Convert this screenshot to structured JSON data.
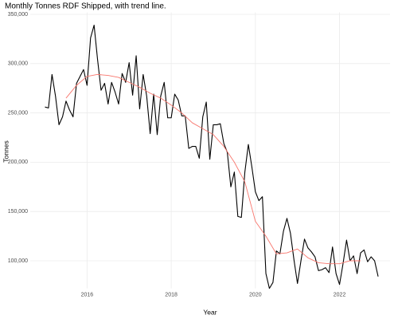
{
  "chart_data": {
    "type": "line",
    "title": "Monthly Tonnes RDF Shipped, with trend line.",
    "x_label": "Year",
    "y_label": "Tonnes",
    "xlim": [
      2014.65,
      2023.2
    ],
    "ylim": [
      72000,
      352000
    ],
    "xticks": [
      2016,
      2018,
      2020,
      2022
    ],
    "yticks": [
      {
        "value": 100000,
        "label": "100,000"
      },
      {
        "value": 150000,
        "label": "150,000"
      },
      {
        "value": 200000,
        "label": "200,000"
      },
      {
        "value": 250000,
        "label": "250,000"
      },
      {
        "value": 300000,
        "label": "300,000"
      },
      {
        "value": 350000,
        "label": "350,000"
      }
    ],
    "grid": true,
    "series": [
      {
        "color": "#000000",
        "x": [
          2015.0,
          2015.083,
          2015.167,
          2015.25,
          2015.333,
          2015.417,
          2015.5,
          2015.583,
          2015.667,
          2015.75,
          2015.833,
          2015.917,
          2016.0,
          2016.083,
          2016.167,
          2016.25,
          2016.333,
          2016.417,
          2016.5,
          2016.583,
          2016.667,
          2016.75,
          2016.833,
          2016.917,
          2017.0,
          2017.083,
          2017.167,
          2017.25,
          2017.333,
          2017.417,
          2017.5,
          2017.583,
          2017.667,
          2017.75,
          2017.833,
          2017.917,
          2018.0,
          2018.083,
          2018.167,
          2018.25,
          2018.333,
          2018.417,
          2018.5,
          2018.583,
          2018.667,
          2018.75,
          2018.833,
          2018.917,
          2019.0,
          2019.083,
          2019.167,
          2019.25,
          2019.333,
          2019.417,
          2019.5,
          2019.583,
          2019.667,
          2019.75,
          2019.833,
          2019.917,
          2020.0,
          2020.083,
          2020.167,
          2020.25,
          2020.333,
          2020.417,
          2020.5,
          2020.583,
          2020.667,
          2020.75,
          2020.833,
          2020.917,
          2021.0,
          2021.083,
          2021.167,
          2021.25,
          2021.333,
          2021.417,
          2021.5,
          2021.583,
          2021.667,
          2021.75,
          2021.833,
          2021.917,
          2022.0,
          2022.083,
          2022.167,
          2022.25,
          2022.333,
          2022.417,
          2022.5,
          2022.583,
          2022.667,
          2022.75,
          2022.833,
          2022.917
        ],
        "values": [
          256000,
          255000,
          289000,
          267000,
          238000,
          246000,
          262000,
          253000,
          246000,
          280000,
          287000,
          294000,
          278000,
          326000,
          339000,
          304000,
          273000,
          280000,
          259000,
          281000,
          271000,
          259000,
          290000,
          281000,
          301000,
          268000,
          308000,
          254000,
          289000,
          267000,
          229000,
          269000,
          228000,
          267000,
          281000,
          245000,
          245000,
          269000,
          263000,
          247000,
          247000,
          214000,
          216000,
          216000,
          204000,
          246000,
          261000,
          203000,
          238000,
          238000,
          239000,
          219000,
          210000,
          175000,
          190000,
          145000,
          144000,
          190000,
          218000,
          195000,
          170000,
          161000,
          165000,
          87000,
          72000,
          78000,
          110000,
          107000,
          130000,
          143000,
          128000,
          101000,
          77000,
          100000,
          122000,
          113000,
          109000,
          104000,
          90000,
          91000,
          93000,
          88000,
          114000,
          87000,
          76000,
          97000,
          121000,
          100000,
          105000,
          87000,
          108000,
          111000,
          99000,
          104000,
          100000,
          84000
        ]
      },
      {
        "color": "#f8766d",
        "x": [
          2015.5,
          2015.75,
          2016.0,
          2016.25,
          2016.5,
          2016.75,
          2017.0,
          2017.25,
          2017.5,
          2017.75,
          2018.0,
          2018.25,
          2018.5,
          2018.75,
          2019.0,
          2019.25,
          2019.5,
          2019.75,
          2020.0,
          2020.25,
          2020.5,
          2020.75,
          2021.0,
          2021.25,
          2021.5,
          2021.75,
          2022.0,
          2022.25,
          2022.5
        ],
        "values": [
          265000,
          278000,
          287000,
          289000,
          288000,
          286000,
          281000,
          276000,
          270000,
          265000,
          258000,
          250000,
          240000,
          234000,
          228000,
          216000,
          200000,
          180000,
          140000,
          125000,
          107000,
          108000,
          112000,
          103000,
          98000,
          97000,
          97000,
          100000,
          100000
        ]
      }
    ]
  }
}
